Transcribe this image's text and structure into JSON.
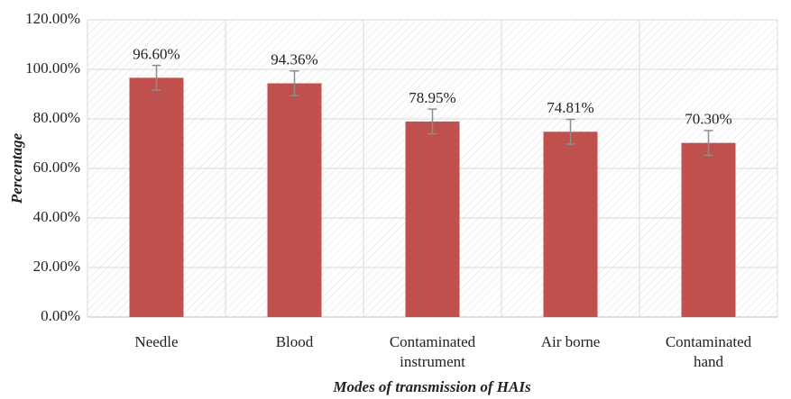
{
  "chart_data": {
    "type": "bar",
    "xlabel": "Modes of transmission of HAIs",
    "ylabel": "Percentage",
    "categories": [
      "Needle",
      "Blood",
      "Contaminated instrument",
      "Air borne",
      "Contaminated hand"
    ],
    "values": [
      96.6,
      94.36,
      78.95,
      74.81,
      70.3
    ],
    "value_labels": [
      "96.60%",
      "94.36%",
      "78.95%",
      "74.81%",
      "70.30%"
    ],
    "errors": [
      5,
      5,
      5,
      5,
      5
    ],
    "color": "#c0504d",
    "error_color": "#8c8c8c",
    "ylim": [
      0,
      120
    ],
    "yticks": [
      {
        "value": 0,
        "label": "0.00%"
      },
      {
        "value": 20,
        "label": "20.00%"
      },
      {
        "value": 40,
        "label": "40.00%"
      },
      {
        "value": 60,
        "label": "60.00%"
      },
      {
        "value": 80,
        "label": "80.00%"
      },
      {
        "value": 100,
        "label": "100.00%"
      },
      {
        "value": 120,
        "label": "120.00%"
      }
    ],
    "grid": true
  }
}
